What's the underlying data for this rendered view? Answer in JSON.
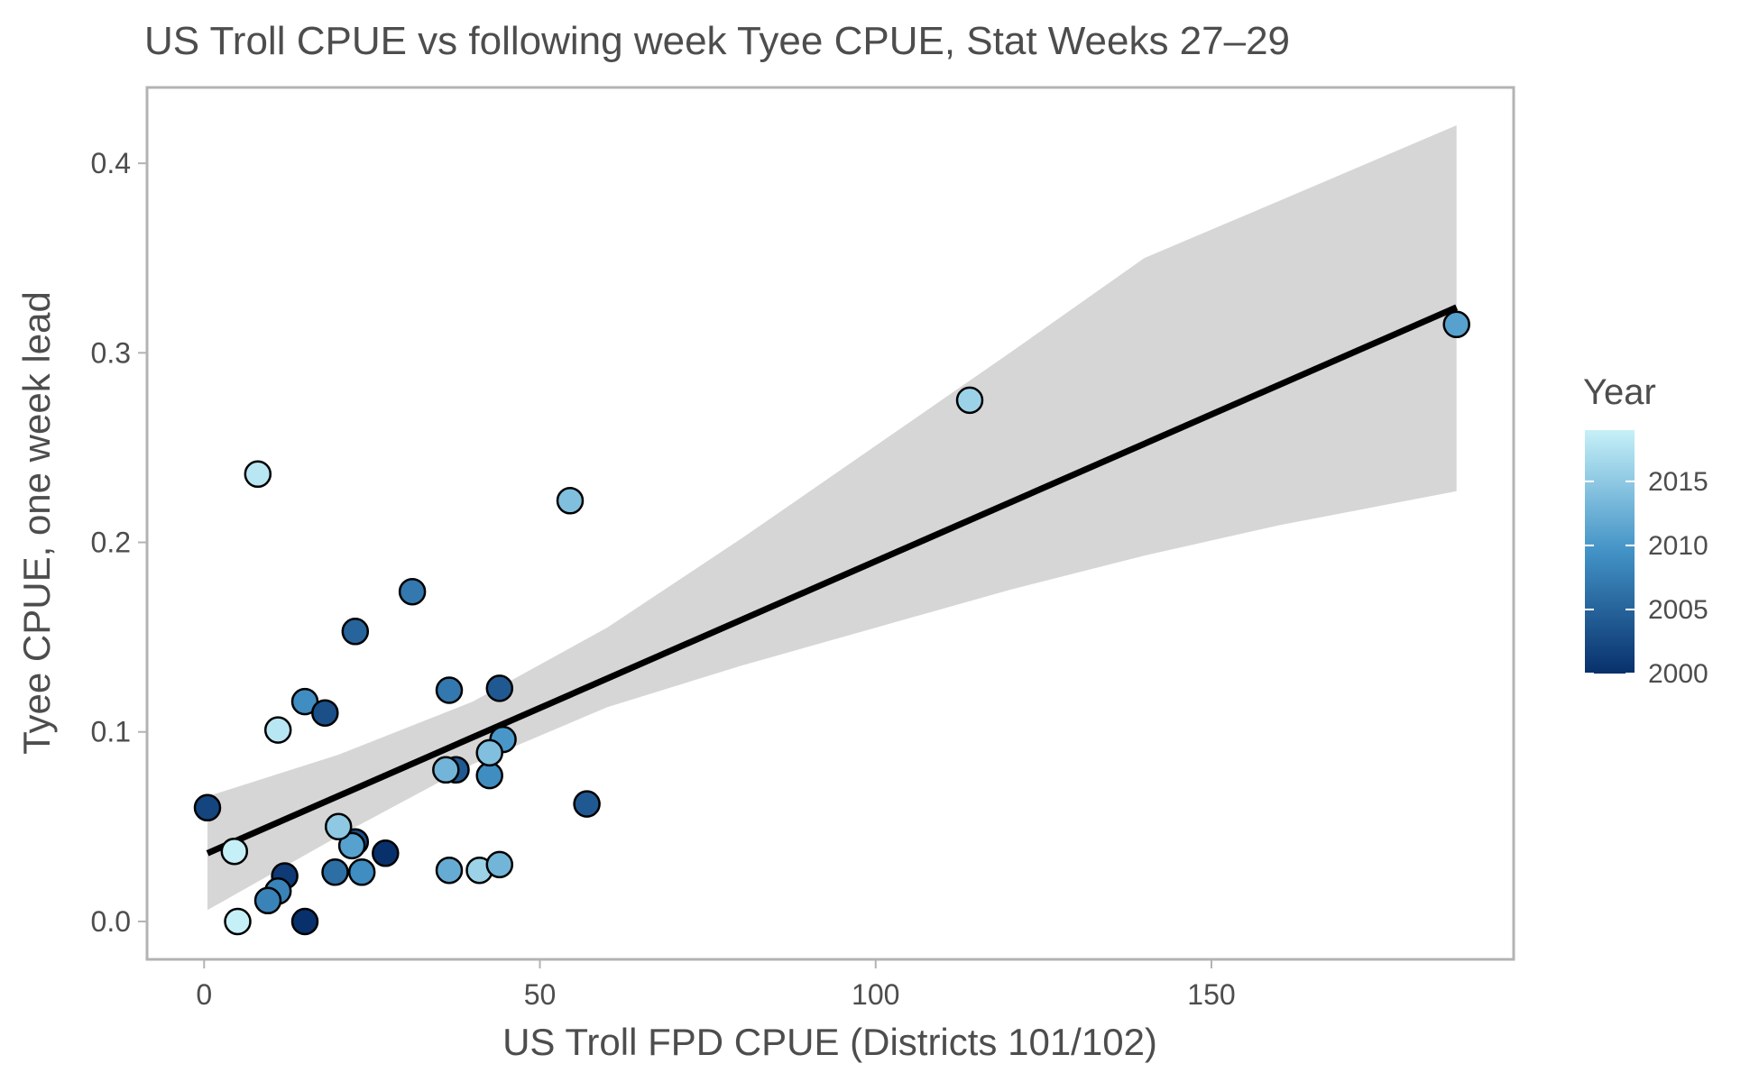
{
  "chart_data": {
    "type": "scatter",
    "title": "US Troll CPUE vs following week Tyee CPUE, Stat Weeks 27–29",
    "xlabel": "US Troll FPD CPUE (Districts 101/102)",
    "ylabel": "Tyee CPUE, one week lead",
    "xlim": [
      -8.5,
      195
    ],
    "ylim": [
      -0.02,
      0.44
    ],
    "x_ticks": [
      0,
      50,
      100,
      150
    ],
    "x_tick_labels": [
      "0",
      "50",
      "100",
      "150"
    ],
    "y_ticks": [
      0.0,
      0.1,
      0.2,
      0.3,
      0.4
    ],
    "y_tick_labels": [
      "0.0",
      "0.1",
      "0.2",
      "0.3",
      "0.4"
    ],
    "grid": false,
    "legend": {
      "title": "Year",
      "placement": "right",
      "type": "colorbar",
      "range": [
        2000,
        2019
      ],
      "ticks": [
        2000,
        2005,
        2010,
        2015
      ],
      "tick_labels": [
        "2000",
        "2005",
        "2010",
        "2015"
      ],
      "low_color": "#08306b",
      "mid_color": "#4292c6",
      "high_color": "#c6f0f8"
    },
    "fit": {
      "type": "linear",
      "color": "#000000",
      "ribbon_color": "#d6d6d6",
      "line": [
        [
          0.5,
          0.036
        ],
        [
          186.5,
          0.324
        ]
      ],
      "ribbon": [
        {
          "x": 0.5,
          "lo": 0.006,
          "hi": 0.066
        },
        {
          "x": 20,
          "lo": 0.045,
          "hi": 0.088
        },
        {
          "x": 40,
          "lo": 0.083,
          "hi": 0.116
        },
        {
          "x": 60,
          "lo": 0.113,
          "hi": 0.155
        },
        {
          "x": 80,
          "lo": 0.135,
          "hi": 0.202
        },
        {
          "x": 100,
          "lo": 0.155,
          "hi": 0.251
        },
        {
          "x": 120,
          "lo": 0.175,
          "hi": 0.3
        },
        {
          "x": 140,
          "lo": 0.193,
          "hi": 0.35
        },
        {
          "x": 160,
          "lo": 0.209,
          "hi": 0.38
        },
        {
          "x": 186.5,
          "lo": 0.227,
          "hi": 0.42
        }
      ]
    },
    "points": [
      {
        "x": 8,
        "y": 0.236,
        "year": 2018
      },
      {
        "x": 11,
        "y": 0.101,
        "year": 2018
      },
      {
        "x": 4.5,
        "y": 0.037,
        "year": 2019
      },
      {
        "x": 5,
        "y": 0.0,
        "year": 2019
      },
      {
        "x": 0.5,
        "y": 0.06,
        "year": 2002
      },
      {
        "x": 15,
        "y": 0.0,
        "year": 2000
      },
      {
        "x": 12,
        "y": 0.024,
        "year": 2001
      },
      {
        "x": 11,
        "y": 0.016,
        "year": 2008
      },
      {
        "x": 9.5,
        "y": 0.011,
        "year": 2008
      },
      {
        "x": 19.5,
        "y": 0.026,
        "year": 2006
      },
      {
        "x": 22.5,
        "y": 0.042,
        "year": 2003
      },
      {
        "x": 22,
        "y": 0.04,
        "year": 2011
      },
      {
        "x": 20,
        "y": 0.05,
        "year": 2015
      },
      {
        "x": 23.5,
        "y": 0.026,
        "year": 2009
      },
      {
        "x": 27,
        "y": 0.036,
        "year": 2000
      },
      {
        "x": 15,
        "y": 0.116,
        "year": 2009
      },
      {
        "x": 18,
        "y": 0.11,
        "year": 2003
      },
      {
        "x": 22.5,
        "y": 0.153,
        "year": 2005
      },
      {
        "x": 31,
        "y": 0.174,
        "year": 2007
      },
      {
        "x": 36.5,
        "y": 0.122,
        "year": 2007
      },
      {
        "x": 44,
        "y": 0.123,
        "year": 2004
      },
      {
        "x": 37.5,
        "y": 0.08,
        "year": 2004
      },
      {
        "x": 36,
        "y": 0.08,
        "year": 2013
      },
      {
        "x": 44.5,
        "y": 0.096,
        "year": 2010
      },
      {
        "x": 42.5,
        "y": 0.077,
        "year": 2009
      },
      {
        "x": 42.5,
        "y": 0.089,
        "year": 2014
      },
      {
        "x": 36.5,
        "y": 0.027,
        "year": 2012
      },
      {
        "x": 41,
        "y": 0.027,
        "year": 2016
      },
      {
        "x": 44,
        "y": 0.03,
        "year": 2013
      },
      {
        "x": 57,
        "y": 0.062,
        "year": 2004
      },
      {
        "x": 54.5,
        "y": 0.222,
        "year": 2014
      },
      {
        "x": 114,
        "y": 0.275,
        "year": 2016
      },
      {
        "x": 186.5,
        "y": 0.315,
        "year": 2011
      }
    ]
  }
}
